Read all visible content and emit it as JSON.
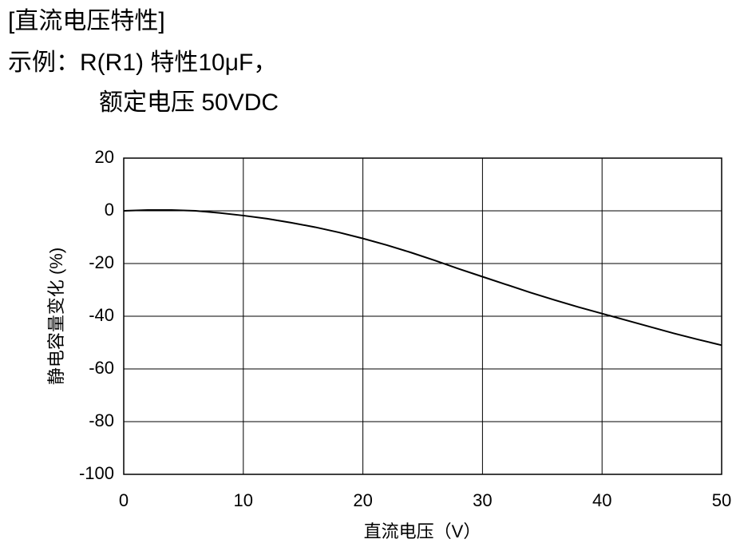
{
  "chart_data": {
    "type": "line",
    "title": "[直流电压特性]",
    "subtitle": [
      "示例：R(R1) 特性10μF，",
      "额定电压 50VDC"
    ],
    "x_label": "直流电压（V）",
    "y_label": "静电容量变化 (%)",
    "x": [
      0,
      2,
      4,
      6,
      8,
      10,
      12,
      14,
      16,
      18,
      20,
      22,
      24,
      26,
      28,
      30,
      32,
      34,
      36,
      38,
      40,
      42,
      44,
      46,
      48,
      50
    ],
    "values": [
      0,
      0.3,
      0.3,
      0,
      -0.8,
      -1.8,
      -3,
      -4.5,
      -6.2,
      -8.2,
      -10.5,
      -13,
      -15.8,
      -18.8,
      -22,
      -25,
      -28,
      -31,
      -33.8,
      -36.5,
      -39,
      -41.5,
      -44,
      -46.5,
      -48.8,
      -51
    ],
    "color": "#000000",
    "xlim": [
      0,
      50
    ],
    "xticks": [
      0,
      10,
      20,
      30,
      40,
      50
    ],
    "ylim": [
      -100,
      20
    ],
    "yticks": [
      20,
      0,
      -20,
      -40,
      -60,
      -80,
      -100
    ],
    "grid": true
  }
}
